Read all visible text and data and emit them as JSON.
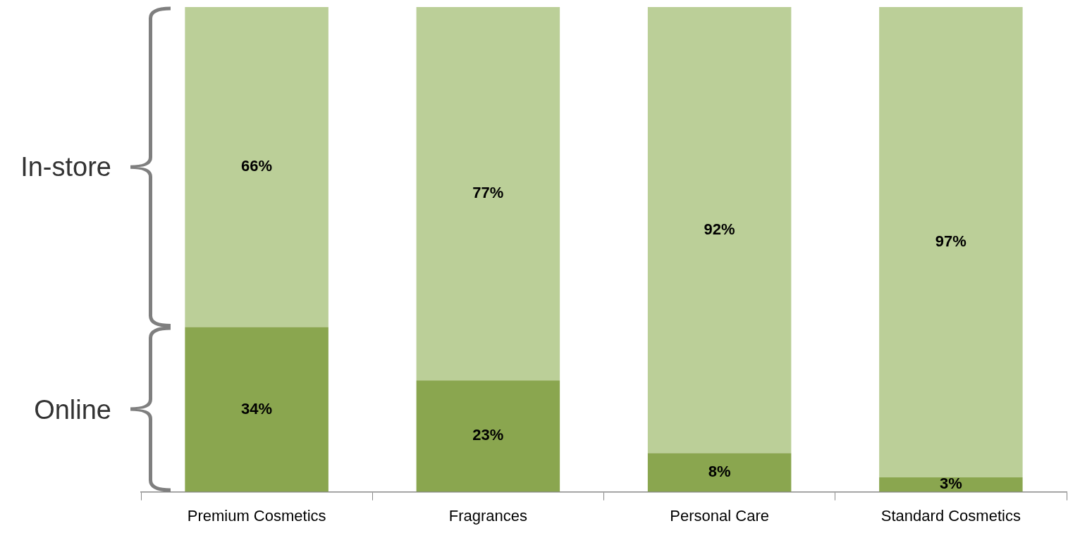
{
  "chart_data": {
    "type": "bar",
    "stacked": true,
    "categories": [
      "Premium Cosmetics",
      "Fragrances",
      "Personal Care",
      "Standard Cosmetics"
    ],
    "series": [
      {
        "name": "Online",
        "color": "#8aa64f",
        "values": [
          34,
          23,
          8,
          3
        ],
        "value_labels": [
          "34%",
          "23%",
          "8%",
          "3%"
        ]
      },
      {
        "name": "In-store",
        "color": "#bbcf98",
        "values": [
          66,
          77,
          92,
          97
        ],
        "value_labels": [
          "66%",
          "77%",
          "92%",
          "97%"
        ]
      }
    ],
    "tick_labels": "x",
    "grid": false,
    "legend": false
  }
}
